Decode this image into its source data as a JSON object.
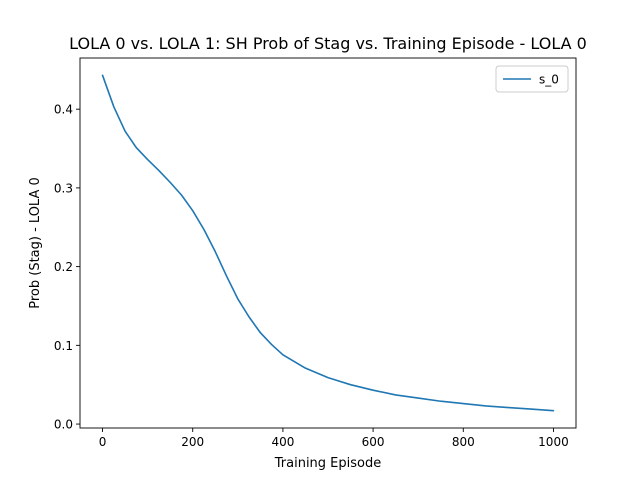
{
  "chart_data": {
    "type": "line",
    "title": "LOLA 0 vs. LOLA 1: SH Prob of Stag vs. Training Episode - LOLA 0",
    "xlabel": "Training Episode",
    "ylabel": "Prob (Stag) - LOLA 0",
    "xlim": [
      -50,
      1050
    ],
    "ylim": [
      -0.005,
      0.465
    ],
    "xticks": [
      0,
      200,
      400,
      600,
      800,
      1000
    ],
    "xtick_labels": [
      "0",
      "200",
      "400",
      "600",
      "800",
      "1000"
    ],
    "yticks": [
      0.0,
      0.1,
      0.2,
      0.3,
      0.4
    ],
    "ytick_labels": [
      "0.0",
      "0.1",
      "0.2",
      "0.3",
      "0.4"
    ],
    "grid": false,
    "legend_position": "top-right",
    "series": [
      {
        "name": "s_0",
        "color": "#1f77b4",
        "x": [
          0,
          25,
          50,
          75,
          100,
          125,
          150,
          175,
          200,
          225,
          250,
          275,
          300,
          325,
          350,
          375,
          400,
          450,
          500,
          550,
          600,
          650,
          700,
          750,
          800,
          850,
          900,
          950,
          1000
        ],
        "y": [
          0.443,
          0.403,
          0.372,
          0.351,
          0.336,
          0.322,
          0.307,
          0.291,
          0.271,
          0.247,
          0.219,
          0.188,
          0.159,
          0.136,
          0.116,
          0.101,
          0.088,
          0.071,
          0.059,
          0.05,
          0.043,
          0.037,
          0.033,
          0.029,
          0.026,
          0.023,
          0.021,
          0.019,
          0.017
        ]
      }
    ]
  }
}
